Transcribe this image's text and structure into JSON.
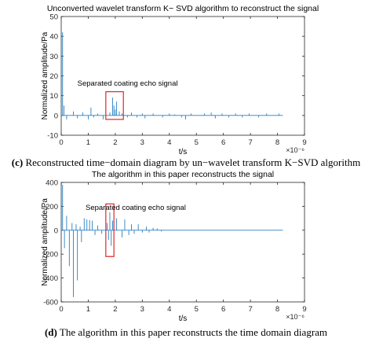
{
  "chart_data": [
    {
      "type": "line",
      "title": "Unconverted wavelet transform K− SVD algorithm to reconstruct the signal",
      "xlabel": "t/s",
      "ylabel": "Normalized amplitude/Pa",
      "x_multiplier": "×10⁻⁶",
      "xlim": [
        0,
        9
      ],
      "ylim": [
        -10,
        50
      ],
      "xticks": [
        "0",
        "1",
        "2",
        "3",
        "4",
        "5",
        "6",
        "7",
        "8",
        "9"
      ],
      "yticks": [
        "-10",
        "0",
        "10",
        "20",
        "30",
        "40",
        "50"
      ],
      "grid": false,
      "series_color": "#2a7fc1",
      "signal_end": 8.2,
      "annotation": {
        "text": "Separated coating echo signal",
        "box_x": [
          1.65,
          2.3
        ],
        "box_y": [
          -2,
          12
        ]
      },
      "points": [
        [
          0.05,
          42
        ],
        [
          0.1,
          5
        ],
        [
          0.2,
          -2
        ],
        [
          0.45,
          2
        ],
        [
          0.6,
          -1.5
        ],
        [
          0.8,
          1.5
        ],
        [
          1.0,
          -2
        ],
        [
          1.1,
          4
        ],
        [
          1.2,
          -1
        ],
        [
          1.35,
          1
        ],
        [
          1.55,
          -2
        ],
        [
          1.8,
          1.5
        ],
        [
          1.9,
          9
        ],
        [
          1.95,
          5
        ],
        [
          2.0,
          3
        ],
        [
          2.05,
          7
        ],
        [
          2.15,
          2
        ],
        [
          2.25,
          1
        ],
        [
          2.45,
          -1
        ],
        [
          2.6,
          1.5
        ],
        [
          2.8,
          -1
        ],
        [
          3.0,
          1
        ],
        [
          3.1,
          -1.5
        ],
        [
          3.4,
          1
        ],
        [
          3.75,
          -1
        ],
        [
          4.0,
          1
        ],
        [
          4.2,
          0.5
        ],
        [
          4.45,
          -1
        ],
        [
          4.6,
          -2
        ],
        [
          4.8,
          1
        ],
        [
          5.3,
          1
        ],
        [
          5.55,
          1.5
        ],
        [
          5.7,
          -1.5
        ],
        [
          5.95,
          1
        ],
        [
          6.2,
          -1
        ],
        [
          6.45,
          1
        ],
        [
          6.7,
          -1
        ],
        [
          6.95,
          1
        ],
        [
          7.3,
          -1
        ],
        [
          7.6,
          1
        ],
        [
          8.05,
          1
        ]
      ]
    },
    {
      "type": "line",
      "title": "The algorithm in this paper reconstructs the signal",
      "xlabel": "t/s",
      "ylabel": "Normalized amplitude/Pa",
      "x_multiplier": "×10⁻⁶",
      "xlim": [
        0,
        9
      ],
      "ylim": [
        -600,
        400
      ],
      "xticks": [
        "0",
        "1",
        "2",
        "3",
        "4",
        "5",
        "6",
        "7",
        "8",
        "9"
      ],
      "yticks": [
        "-600",
        "-400",
        "-200",
        "0",
        "200",
        "400"
      ],
      "grid": false,
      "series_color": "#2a7fc1",
      "signal_end": 8.2,
      "annotation": {
        "text": "Separated coating echo signal",
        "box_x": [
          1.65,
          1.95
        ],
        "box_y": [
          -220,
          220
        ]
      },
      "points": [
        [
          0.05,
          380
        ],
        [
          0.12,
          -150
        ],
        [
          0.2,
          120
        ],
        [
          0.3,
          -300
        ],
        [
          0.4,
          60
        ],
        [
          0.45,
          -560
        ],
        [
          0.55,
          50
        ],
        [
          0.6,
          -420
        ],
        [
          0.7,
          30
        ],
        [
          0.75,
          -100
        ],
        [
          0.85,
          100
        ],
        [
          0.95,
          90
        ],
        [
          1.05,
          85
        ],
        [
          1.15,
          80
        ],
        [
          1.25,
          -40
        ],
        [
          1.35,
          40
        ],
        [
          1.5,
          -30
        ],
        [
          1.7,
          60
        ],
        [
          1.75,
          -80
        ],
        [
          1.8,
          150
        ],
        [
          1.85,
          -130
        ],
        [
          1.9,
          80
        ],
        [
          2.05,
          100
        ],
        [
          2.25,
          -60
        ],
        [
          2.35,
          90
        ],
        [
          2.5,
          -40
        ],
        [
          2.6,
          50
        ],
        [
          2.7,
          -30
        ],
        [
          2.85,
          50
        ],
        [
          3.0,
          -20
        ],
        [
          3.15,
          30
        ],
        [
          3.25,
          -20
        ],
        [
          3.4,
          20
        ],
        [
          3.55,
          15
        ],
        [
          3.7,
          -10
        ]
      ]
    }
  ],
  "captions": {
    "c_label": "(c)",
    "c_text": "Reconstructed time−domain diagram by un−wavelet transform K−SVD algorithm",
    "d_label": "(d)",
    "d_text": "The algorithm in this paper reconstructs the time domain diagram"
  }
}
